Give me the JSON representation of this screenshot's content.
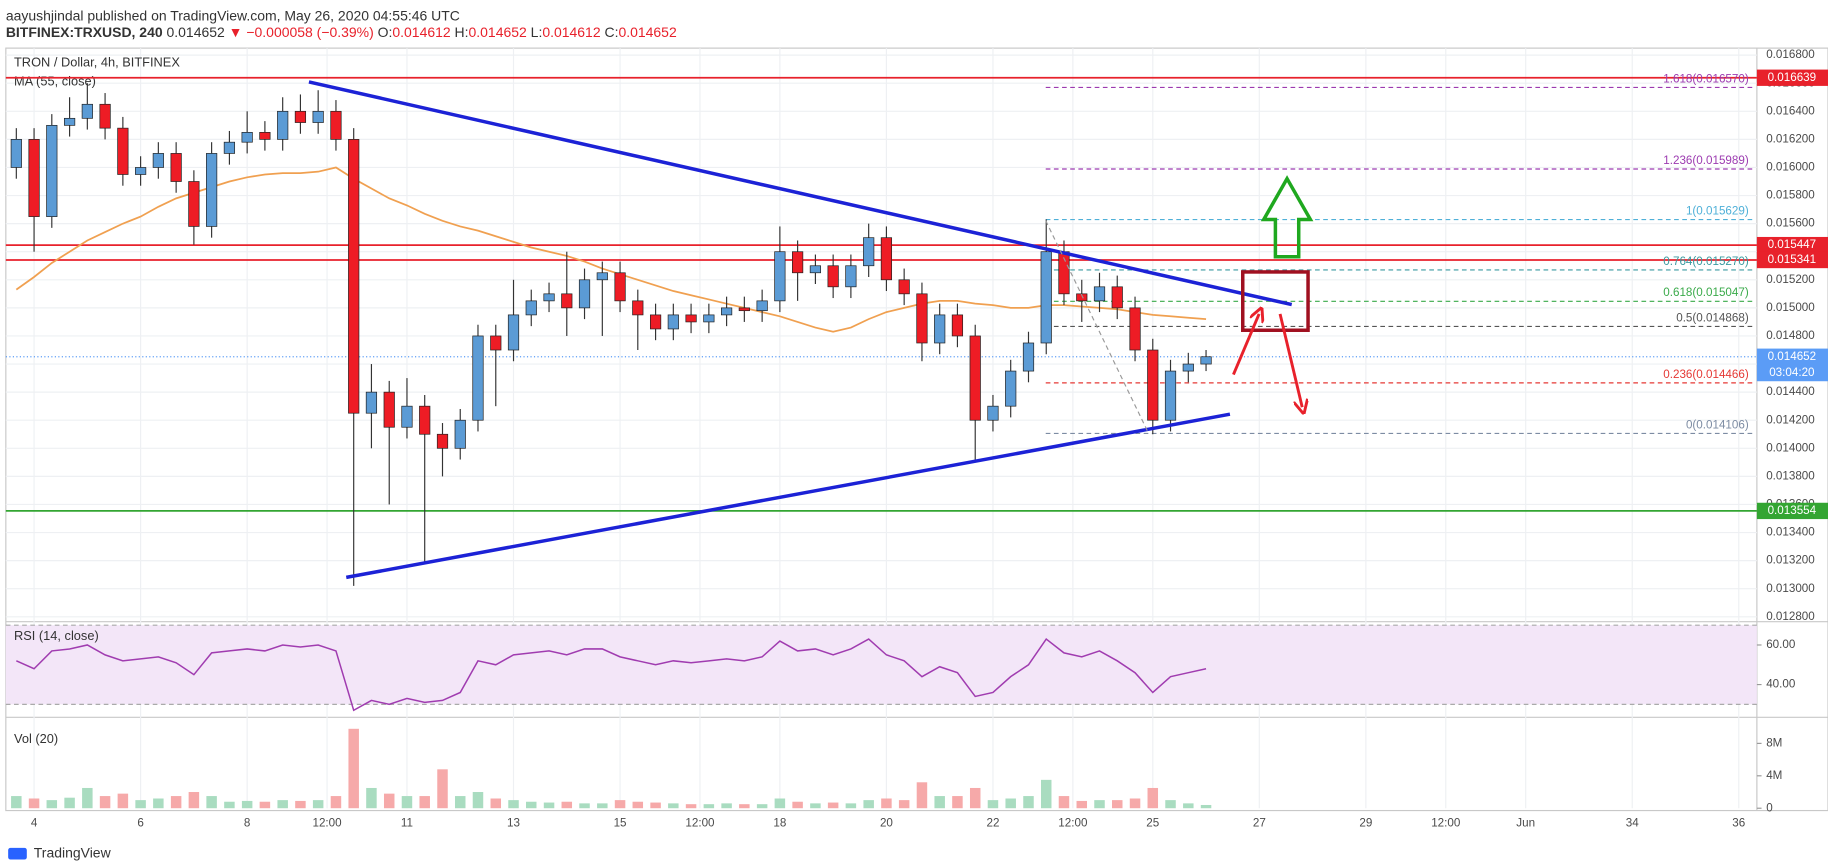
{
  "header": {
    "author": "aayushjindal",
    "published": " published on TradingView.com, May 26, 2020 04:55:46 UTC",
    "symbol": "BITFINEX:TRXUSD, 240",
    "price": "0.014652",
    "change": "▼ −0.000058 (−0.39%)",
    "ohlc": [
      {
        "label": "O:",
        "value": "0.014612"
      },
      {
        "label": "H:",
        "value": "0.014652"
      },
      {
        "label": "L:",
        "value": "0.014612"
      },
      {
        "label": "C:",
        "value": "0.014652"
      }
    ]
  },
  "brand": "TradingView",
  "chart_data": [
    {
      "type": "candlestick",
      "title": "TRON / Dollar, 4h, BITFINEX",
      "up_color": "#5b9bd5",
      "down_color": "#ee1c25",
      "x": [
        3.667,
        4,
        4.333,
        4.667,
        5,
        5.333,
        5.667,
        6,
        6.333,
        6.667,
        7,
        7.333,
        7.667,
        8,
        8.333,
        8.667,
        9,
        9.333,
        9.667,
        10,
        10.333,
        10.667,
        11,
        11.333,
        11.667,
        12,
        12.333,
        12.667,
        13,
        13.333,
        13.667,
        14,
        14.333,
        14.667,
        15,
        15.333,
        15.667,
        16,
        16.333,
        16.667,
        17,
        17.333,
        17.667,
        18,
        18.333,
        18.667,
        19,
        19.333,
        19.667,
        20,
        20.333,
        20.667,
        21,
        21.333,
        21.667,
        22,
        22.333,
        22.667,
        23,
        23.333,
        23.667,
        24,
        24.333,
        24.667,
        25,
        25.333,
        25.667,
        26
      ],
      "open": [
        0.016,
        0.0162,
        0.01565,
        0.0163,
        0.01635,
        0.01645,
        0.01628,
        0.01595,
        0.016,
        0.0161,
        0.0159,
        0.01558,
        0.0161,
        0.01618,
        0.01625,
        0.0162,
        0.0164,
        0.01632,
        0.0164,
        0.0162,
        0.01425,
        0.0144,
        0.01415,
        0.0143,
        0.0141,
        0.014,
        0.0142,
        0.0148,
        0.0147,
        0.01495,
        0.01505,
        0.0151,
        0.015,
        0.0152,
        0.01525,
        0.01505,
        0.01495,
        0.01485,
        0.01495,
        0.0149,
        0.01495,
        0.015,
        0.01498,
        0.01505,
        0.0154,
        0.01525,
        0.0153,
        0.01515,
        0.0153,
        0.0155,
        0.0152,
        0.0151,
        0.01475,
        0.01495,
        0.0148,
        0.0142,
        0.0143,
        0.01455,
        0.01475,
        0.0154,
        0.0151,
        0.01505,
        0.01515,
        0.015,
        0.0147,
        0.0142,
        0.01455,
        0.0146
      ],
      "high": [
        0.01628,
        0.01628,
        0.01638,
        0.0165,
        0.0166,
        0.01653,
        0.01636,
        0.01608,
        0.01618,
        0.01618,
        0.01598,
        0.01618,
        0.01626,
        0.0164,
        0.01633,
        0.0165,
        0.01652,
        0.01655,
        0.01648,
        0.01628,
        0.0146,
        0.01448,
        0.0145,
        0.01438,
        0.01418,
        0.01428,
        0.01488,
        0.01488,
        0.0152,
        0.01513,
        0.01518,
        0.0154,
        0.01528,
        0.01533,
        0.01533,
        0.01513,
        0.01503,
        0.01503,
        0.01503,
        0.01503,
        0.01508,
        0.01508,
        0.01513,
        0.01558,
        0.01548,
        0.01538,
        0.01538,
        0.01538,
        0.0156,
        0.01558,
        0.01528,
        0.01518,
        0.01503,
        0.01503,
        0.01488,
        0.01438,
        0.01463,
        0.01483,
        0.01563,
        0.01548,
        0.0152,
        0.01525,
        0.01523,
        0.01508,
        0.01478,
        0.01463,
        0.01468,
        0.0147
      ],
      "low": [
        0.01592,
        0.0154,
        0.01557,
        0.01622,
        0.01627,
        0.0162,
        0.01587,
        0.01587,
        0.01592,
        0.01582,
        0.01545,
        0.0155,
        0.01602,
        0.0161,
        0.01612,
        0.01612,
        0.01624,
        0.01624,
        0.01612,
        0.01302,
        0.014,
        0.0136,
        0.01407,
        0.01318,
        0.0138,
        0.01392,
        0.01412,
        0.0143,
        0.01462,
        0.01487,
        0.01497,
        0.0148,
        0.01492,
        0.0148,
        0.01497,
        0.0147,
        0.01477,
        0.01477,
        0.01482,
        0.01482,
        0.01487,
        0.0149,
        0.0149,
        0.01497,
        0.01505,
        0.01517,
        0.01507,
        0.01507,
        0.01522,
        0.01512,
        0.01502,
        0.01462,
        0.01467,
        0.01472,
        0.0139,
        0.01412,
        0.01422,
        0.01447,
        0.01467,
        0.01502,
        0.0149,
        0.01497,
        0.01492,
        0.01462,
        0.0141,
        0.01412,
        0.01447,
        0.01455
      ],
      "close": [
        0.0162,
        0.01565,
        0.0163,
        0.01635,
        0.01645,
        0.01628,
        0.01595,
        0.016,
        0.0161,
        0.0159,
        0.01558,
        0.0161,
        0.01618,
        0.01625,
        0.0162,
        0.0164,
        0.01632,
        0.0164,
        0.0162,
        0.01425,
        0.0144,
        0.01415,
        0.0143,
        0.0141,
        0.014,
        0.0142,
        0.0148,
        0.0147,
        0.01495,
        0.01505,
        0.0151,
        0.015,
        0.0152,
        0.01525,
        0.01505,
        0.01495,
        0.01485,
        0.01495,
        0.0149,
        0.01495,
        0.015,
        0.01498,
        0.01505,
        0.0154,
        0.01525,
        0.0153,
        0.01515,
        0.0153,
        0.0155,
        0.0152,
        0.0151,
        0.01475,
        0.01495,
        0.0148,
        0.0142,
        0.0143,
        0.01455,
        0.01475,
        0.0154,
        0.0151,
        0.01505,
        0.01515,
        0.015,
        0.0147,
        0.0142,
        0.01455,
        0.0146,
        0.014652
      ],
      "ma": {
        "name": "MA (55, close)",
        "color": "#f0a050",
        "values": [
          0.01513,
          0.01522,
          0.01532,
          0.0154,
          0.01548,
          0.01554,
          0.0156,
          0.01565,
          0.01572,
          0.01578,
          0.01582,
          0.01586,
          0.0159,
          0.01593,
          0.01595,
          0.01596,
          0.01596,
          0.01597,
          0.016,
          0.01592,
          0.01585,
          0.01578,
          0.01573,
          0.01567,
          0.01562,
          0.01558,
          0.01555,
          0.01551,
          0.01547,
          0.01543,
          0.0154,
          0.01537,
          0.01533,
          0.01528,
          0.01524,
          0.0152,
          0.01516,
          0.01512,
          0.01509,
          0.01506,
          0.01503,
          0.015,
          0.01497,
          0.01494,
          0.0149,
          0.01486,
          0.01483,
          0.01486,
          0.01492,
          0.01497,
          0.015,
          0.01503,
          0.01505,
          0.01505,
          0.01503,
          0.01502,
          0.015,
          0.015,
          0.01502,
          0.01502,
          0.01501,
          0.015,
          0.01499,
          0.01497,
          0.01495,
          0.01494,
          0.01493,
          0.01492
        ]
      },
      "xlim": [
        3.47,
        36.34
      ],
      "xticks": [
        4,
        6,
        8,
        {
          "value": 9.5,
          "label": "12:00"
        },
        11,
        13,
        15,
        {
          "value": 16.5,
          "label": "12:00"
        },
        18,
        20,
        22,
        {
          "value": 23.5,
          "label": "12:00"
        },
        25,
        27,
        29,
        {
          "value": 30.5,
          "label": "12:00"
        },
        {
          "value": 32,
          "label": "Jun"
        },
        34,
        36
      ],
      "ylim": [
        0.01279,
        0.01685
      ],
      "yticks": [
        {
          "value": 0.0128,
          "label": "0.012800"
        },
        {
          "value": 0.013,
          "label": "0.013000"
        },
        {
          "value": 0.0132,
          "label": "0.013200"
        },
        {
          "value": 0.0134,
          "label": "0.013400"
        },
        {
          "value": 0.0136,
          "label": "0.013600"
        },
        {
          "value": 0.0138,
          "label": "0.013800"
        },
        {
          "value": 0.014,
          "label": "0.014000"
        },
        {
          "value": 0.0142,
          "label": "0.014200"
        },
        {
          "value": 0.0144,
          "label": "0.014400"
        },
        {
          "value": 0.0146,
          "label": "0.014600"
        },
        {
          "value": 0.0148,
          "label": "0.014800"
        },
        {
          "value": 0.015,
          "label": "0.015000"
        },
        {
          "value": 0.0152,
          "label": "0.015200"
        },
        {
          "value": 0.0154,
          "label": "0.015400"
        },
        {
          "value": 0.0156,
          "label": "0.015600"
        },
        {
          "value": 0.0158,
          "label": "0.015800"
        },
        {
          "value": 0.016,
          "label": "0.016000"
        },
        {
          "value": 0.0162,
          "label": "0.016200"
        },
        {
          "value": 0.0164,
          "label": "0.016400"
        },
        {
          "value": 0.0166,
          "label": "0.016600"
        },
        {
          "value": 0.0168,
          "label": "0.016800"
        }
      ],
      "grid": true,
      "levels": [
        {
          "value": 0.016639,
          "color": "#e8212b"
        },
        {
          "value": 0.015447,
          "color": "#e8212b"
        },
        {
          "value": 0.015341,
          "color": "#e8212b"
        },
        {
          "value": 0.013554,
          "color": "#33a532"
        }
      ],
      "last_price": {
        "value": 0.014652,
        "color": "#5b9cf6",
        "countdown": "03:04:20"
      },
      "fib": [
        {
          "price": 0.01657,
          "label": "1.618(0.016570)",
          "color": "#9c3bb0"
        },
        {
          "price": 0.015989,
          "label": "1.236(0.015989)",
          "color": "#9c3bb0"
        },
        {
          "price": 0.015629,
          "label": "1(0.015629)",
          "color": "#4fb0d8"
        },
        {
          "price": 0.01527,
          "label": "0.764(0.015270)",
          "color": "#3a9aa0"
        },
        {
          "price": 0.015047,
          "label": "0.618(0.015047)",
          "color": "#3aaa4a"
        },
        {
          "price": 0.014868,
          "label": "0.5(0.014868)",
          "color": "#555555"
        },
        {
          "price": 0.014466,
          "label": "0.236(0.014466)",
          "color": "#e53935"
        },
        {
          "price": 0.014106,
          "label": "0(0.014106)",
          "color": "#7d8ca3"
        }
      ]
    },
    {
      "type": "line",
      "title": "RSI (14, close)",
      "color": "#a03cb0",
      "band": [
        30,
        70
      ],
      "band_color": "#f3e6f8",
      "values": [
        52,
        48,
        57,
        58,
        60,
        55,
        52,
        53,
        54,
        51,
        45,
        56,
        57,
        58,
        57,
        60,
        59,
        60,
        57,
        27,
        32,
        30,
        33,
        31,
        32,
        36,
        52,
        50,
        55,
        56,
        57,
        55,
        58,
        58,
        54,
        52,
        50,
        52,
        51,
        52,
        53,
        52,
        54,
        62,
        57,
        58,
        55,
        58,
        63,
        55,
        52,
        44,
        49,
        46,
        34,
        36,
        44,
        50,
        63,
        56,
        54,
        57,
        52,
        46,
        36,
        44,
        46,
        48
      ],
      "ylim": [
        27,
        70
      ],
      "yticks": [
        {
          "value": 40,
          "label": "40.00"
        },
        {
          "value": 60,
          "label": "60.00"
        }
      ]
    },
    {
      "type": "bar",
      "title": "Vol (20)",
      "up_color": "#a9dcc0",
      "down_color": "#f6a9a9",
      "values": [
        1.5,
        1.2,
        1.0,
        1.3,
        2.5,
        1.5,
        1.8,
        1.0,
        1.2,
        1.5,
        2.0,
        1.5,
        0.8,
        0.9,
        0.8,
        1.0,
        0.9,
        1.0,
        1.5,
        9.8,
        2.5,
        1.8,
        1.5,
        1.5,
        4.8,
        1.5,
        2.0,
        1.2,
        1.0,
        0.8,
        0.7,
        0.8,
        0.6,
        0.6,
        1.0,
        0.8,
        0.7,
        0.6,
        0.5,
        0.5,
        0.6,
        0.5,
        0.5,
        1.2,
        0.8,
        0.6,
        0.7,
        0.6,
        1.0,
        1.2,
        1.0,
        3.2,
        1.5,
        1.5,
        2.5,
        1.0,
        1.2,
        1.5,
        3.5,
        1.5,
        0.9,
        1.0,
        1.0,
        1.2,
        2.5,
        1.0,
        0.6,
        0.4
      ],
      "ylim": [
        0,
        10.5
      ],
      "yticks": [
        0,
        {
          "value": 4,
          "label": "4M"
        },
        {
          "value": 8,
          "label": "8M"
        }
      ]
    }
  ]
}
